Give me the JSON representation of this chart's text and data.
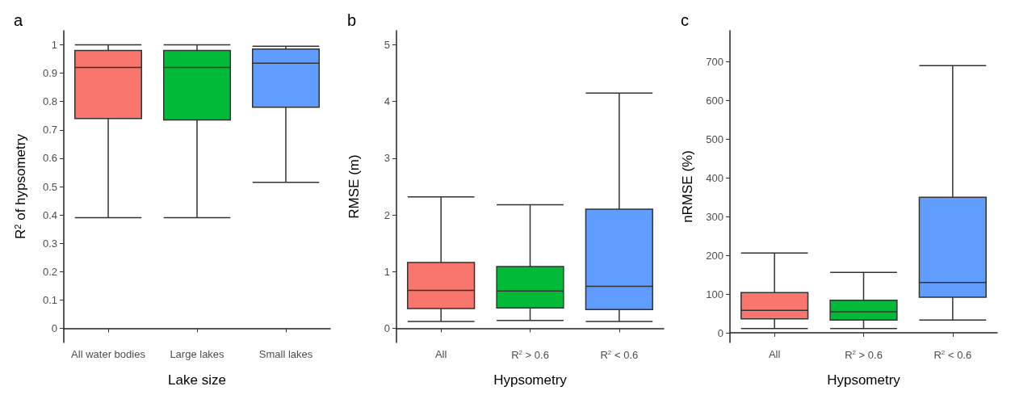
{
  "chart_data": [
    {
      "type": "box",
      "title": "a",
      "xlabel": "Lake size",
      "ylabel": "R$^{2}$ of hypsometry",
      "categories": [
        "All water bodies",
        "Large lakes",
        "Small lakes"
      ],
      "colors": [
        "#f8766d",
        "#00ba38",
        "#619cff"
      ],
      "ylim": [
        -0.05,
        1.05
      ],
      "yticks": [
        0,
        0.1,
        0.2,
        0.3,
        0.4,
        0.5,
        0.6,
        0.7,
        0.8,
        0.9,
        1
      ],
      "grid": false,
      "boxes": [
        {
          "low": 0.39,
          "q1": 0.74,
          "median": 0.92,
          "q3": 0.98,
          "high": 1.0
        },
        {
          "low": 0.39,
          "q1": 0.735,
          "median": 0.92,
          "q3": 0.98,
          "high": 1.0
        },
        {
          "low": 0.515,
          "q1": 0.78,
          "median": 0.935,
          "q3": 0.985,
          "high": 0.995
        }
      ]
    },
    {
      "type": "box",
      "title": "b",
      "xlabel": "Hypsometry",
      "ylabel": "RMSE (m)",
      "categories": [
        "All",
        "R$^{2}$ > 0.6",
        "R$^{2}$ < 0.6"
      ],
      "colors": [
        "#f8766d",
        "#00ba38",
        "#619cff"
      ],
      "ylim": [
        -0.25,
        5.25
      ],
      "yticks": [
        0,
        1,
        2,
        3,
        4,
        5
      ],
      "grid": false,
      "boxes": [
        {
          "low": 0.12,
          "q1": 0.35,
          "median": 0.67,
          "q3": 1.16,
          "high": 2.32
        },
        {
          "low": 0.14,
          "q1": 0.36,
          "median": 0.66,
          "q3": 1.09,
          "high": 2.18
        },
        {
          "low": 0.12,
          "q1": 0.33,
          "median": 0.74,
          "q3": 2.1,
          "high": 4.15
        }
      ]
    },
    {
      "type": "box",
      "title": "c",
      "xlabel": "Hypsometry",
      "ylabel": "nRMSE (%)",
      "categories": [
        "All",
        "R$^{2}$ > 0.6",
        "R$^{2}$ < 0.6"
      ],
      "colors": [
        "#f8766d",
        "#00ba38",
        "#619cff"
      ],
      "ylim": [
        -25,
        780
      ],
      "yticks": [
        0,
        100,
        200,
        300,
        400,
        500,
        600,
        700
      ],
      "grid": false,
      "boxes": [
        {
          "low": 11,
          "q1": 36,
          "median": 58,
          "q3": 104,
          "high": 206
        },
        {
          "low": 11,
          "q1": 33,
          "median": 54,
          "q3": 84,
          "high": 156
        },
        {
          "low": 33,
          "q1": 92,
          "median": 130,
          "q3": 350,
          "high": 690
        }
      ]
    }
  ]
}
